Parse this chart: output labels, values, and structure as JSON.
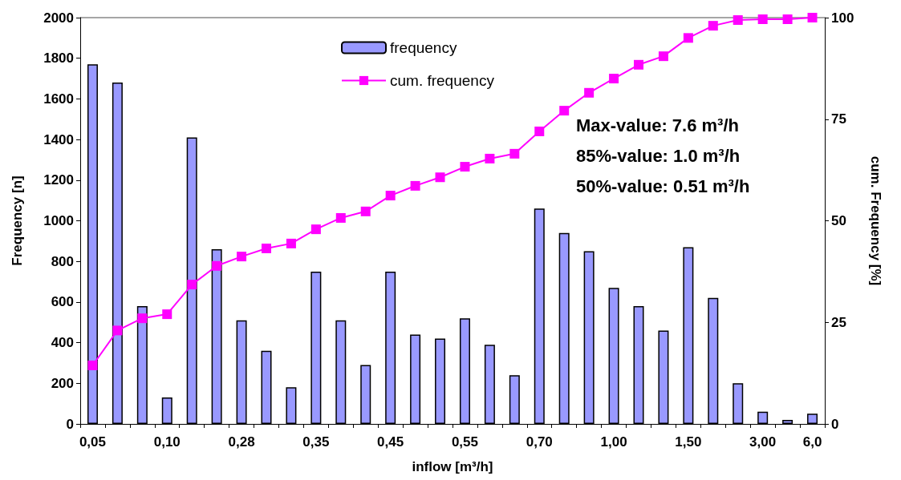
{
  "chart_data": {
    "type": "bar",
    "categories": [
      "0,05",
      null,
      null,
      "0,10",
      null,
      null,
      "0,28",
      null,
      null,
      "0,35",
      null,
      null,
      "0,45",
      null,
      null,
      "0,55",
      null,
      null,
      "0,70",
      null,
      null,
      "1,00",
      null,
      null,
      "1,50",
      null,
      null,
      "3,00",
      null,
      "6,0"
    ],
    "series": [
      {
        "name": "frequency",
        "color": "#9999ff",
        "values": [
          1770,
          1680,
          580,
          130,
          1410,
          860,
          510,
          360,
          180,
          750,
          510,
          290,
          750,
          440,
          420,
          520,
          390,
          240,
          1060,
          940,
          850,
          670,
          580,
          460,
          870,
          620,
          200,
          60,
          20,
          50
        ]
      },
      {
        "name": "cum. frequency",
        "type": "line",
        "axis": "y2",
        "color": "#ff00ff",
        "values": [
          14.4,
          23,
          26,
          27,
          34.3,
          38.9,
          41.2,
          43.2,
          44.4,
          47.9,
          50.7,
          52.3,
          56.2,
          58.6,
          60.7,
          63.3,
          65.3,
          66.5,
          72,
          77.1,
          81.5,
          85,
          88.4,
          90.5,
          95,
          98,
          99.4,
          99.6,
          99.6,
          100
        ]
      }
    ],
    "xlabel": "inflow [m³/h]",
    "ylabel": "Frequency [n]",
    "y2label": "cum. Frequency [%]",
    "ylim": [
      0,
      2000
    ],
    "yticks": [
      0,
      200,
      400,
      600,
      800,
      1000,
      1200,
      1400,
      1600,
      1800,
      2000
    ],
    "y2lim": [
      0,
      100
    ],
    "y2ticks": [
      0,
      25,
      50,
      75,
      100
    ],
    "annotations": [
      "Max-value: 7.6 m³/h",
      "85%-value: 1.0 m³/h",
      "50%-value: 0.51 m³/h"
    ],
    "legend": "top",
    "grid": false,
    "marker": "square",
    "line_style": "solid"
  }
}
